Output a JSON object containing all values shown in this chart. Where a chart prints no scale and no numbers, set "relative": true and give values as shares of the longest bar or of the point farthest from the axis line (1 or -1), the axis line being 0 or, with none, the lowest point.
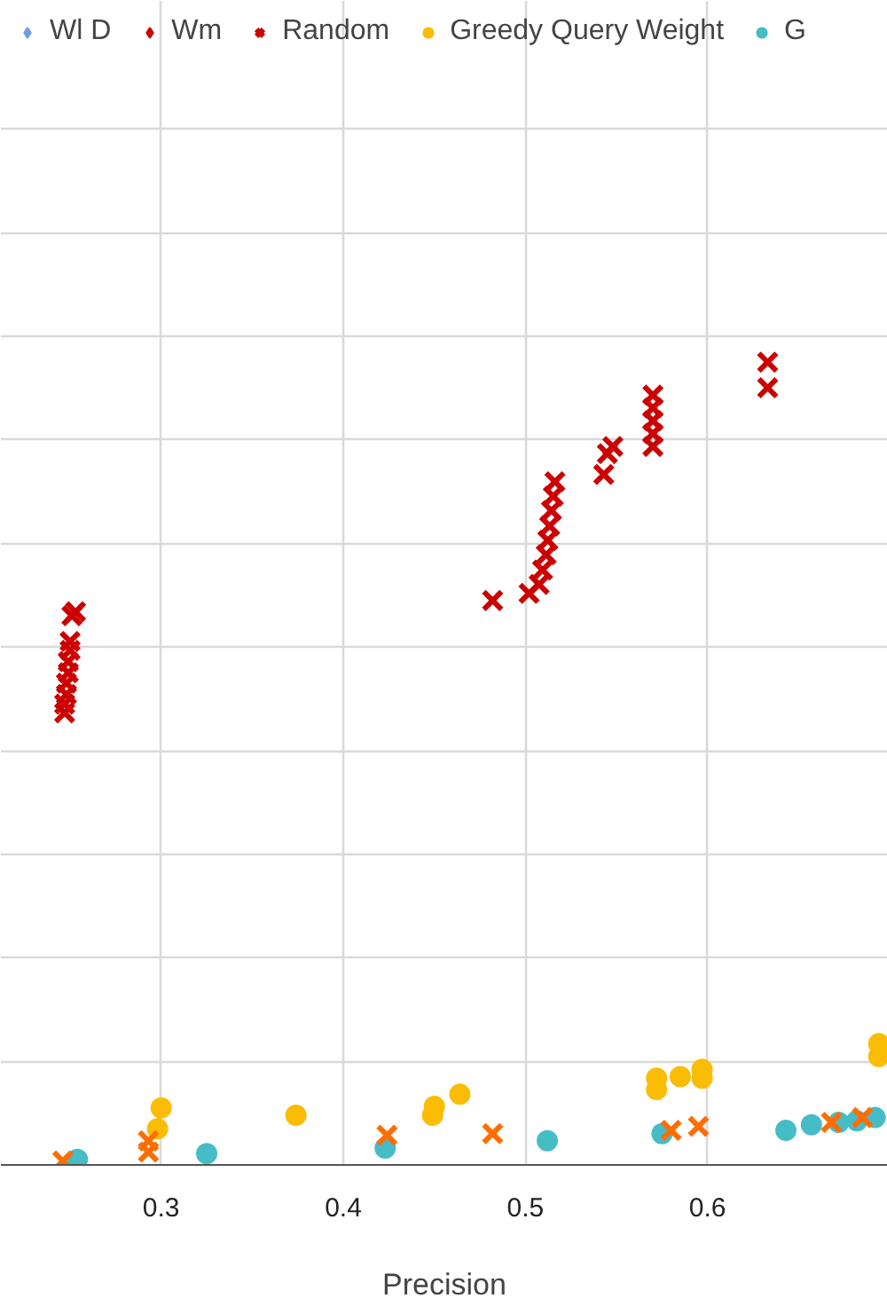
{
  "chart_data": {
    "type": "scatter",
    "xlabel": "Precision",
    "relative": true,
    "xlim": [
      0.212,
      0.699
    ],
    "xticks": [
      0.3,
      0.4,
      0.5,
      0.6
    ],
    "grid": true,
    "legend": "top",
    "series": [
      {
        "name": "Wl D",
        "color": "#6d9eeb",
        "marker": "diamond"
      },
      {
        "name": "Wm",
        "color": "#cc0000",
        "marker": "diamond"
      },
      {
        "name": "Random",
        "color": "#cc0000",
        "marker": "cross",
        "x": [
          0.247,
          0.247,
          0.248,
          0.248,
          0.249,
          0.249,
          0.25,
          0.25,
          0.251,
          0.253,
          0.482,
          0.502,
          0.5075,
          0.5094,
          0.5114,
          0.5123,
          0.5133,
          0.5143,
          0.5153,
          0.5162,
          0.543,
          0.545,
          0.548,
          0.57,
          0.57,
          0.57,
          0.57,
          0.57,
          0.633,
          0.633
        ],
        "values": [
          0.563,
          0.574,
          0.586,
          0.6,
          0.613,
          0.627,
          0.641,
          0.652,
          0.684,
          0.689,
          0.703,
          0.712,
          0.723,
          0.741,
          0.76,
          0.778,
          0.796,
          0.815,
          0.833,
          0.851,
          0.86,
          0.886,
          0.895,
          0.959,
          0.943,
          0.927,
          0.911,
          0.895,
          1.0,
          0.968
        ]
      },
      {
        "name": "Greedy Query Weight",
        "color": "#fbbc04",
        "marker": "circle",
        "x": [
          0.298,
          0.3,
          0.374,
          0.449,
          0.45,
          0.464,
          0.572,
          0.572,
          0.585,
          0.597,
          0.597,
          0.694,
          0.694
        ],
        "values": [
          0.045,
          0.071,
          0.062,
          0.062,
          0.073,
          0.088,
          0.094,
          0.108,
          0.11,
          0.108,
          0.119,
          0.135,
          0.151
        ]
      },
      {
        "name": "G",
        "color": "#46bdc6",
        "marker": "circle",
        "x": [
          0.254,
          0.325,
          0.423,
          0.512,
          0.575,
          0.643,
          0.657,
          0.672,
          0.682,
          0.692
        ],
        "values": [
          0.007,
          0.014,
          0.021,
          0.03,
          0.039,
          0.043,
          0.05,
          0.053,
          0.055,
          0.059
        ]
      },
      {
        "color": "#ff6d01",
        "marker": "cross",
        "x": [
          0.246,
          0.293,
          0.293,
          0.424,
          0.482,
          0.58,
          0.595,
          0.668,
          0.685
        ],
        "values": [
          0.005,
          0.016,
          0.03,
          0.037,
          0.039,
          0.043,
          0.048,
          0.053,
          0.059
        ]
      }
    ]
  }
}
